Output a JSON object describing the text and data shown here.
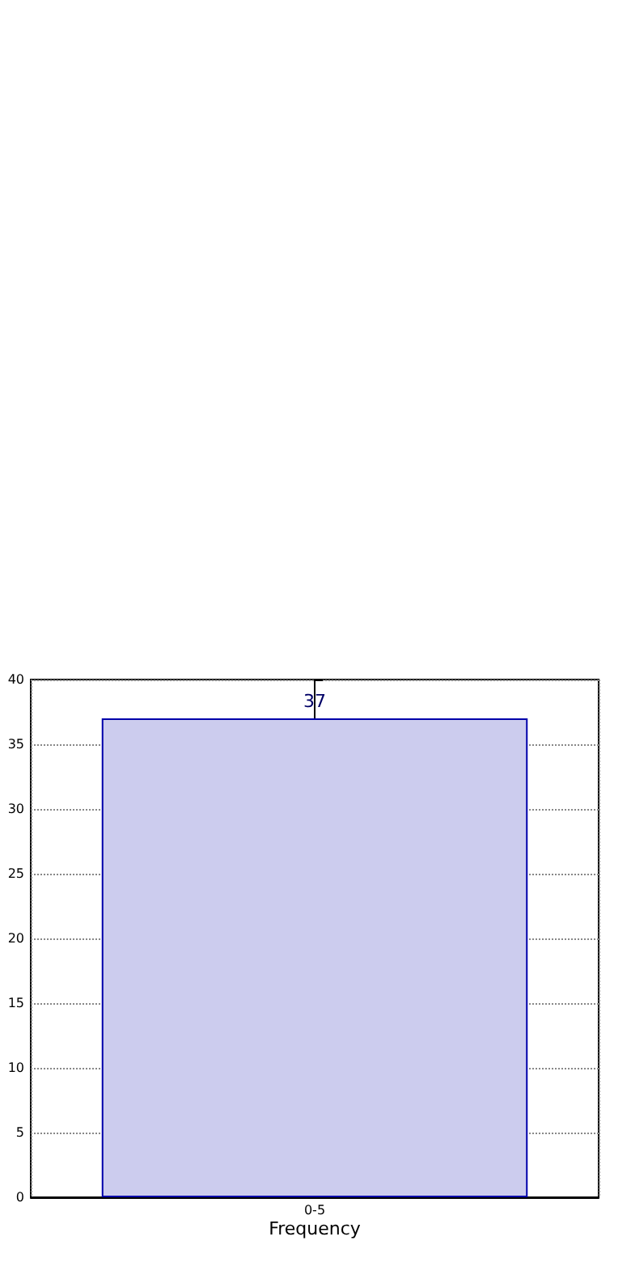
{
  "chart_data": {
    "type": "bar",
    "xlabel": "Frequency",
    "categories": [
      "0-5"
    ],
    "values": [
      37
    ],
    "color": "#ccccee",
    "ylim": [
      0,
      40
    ],
    "yticks": [
      0,
      5,
      10,
      15,
      20,
      25,
      30,
      35,
      40
    ],
    "grid": true,
    "data_labels": true
  }
}
